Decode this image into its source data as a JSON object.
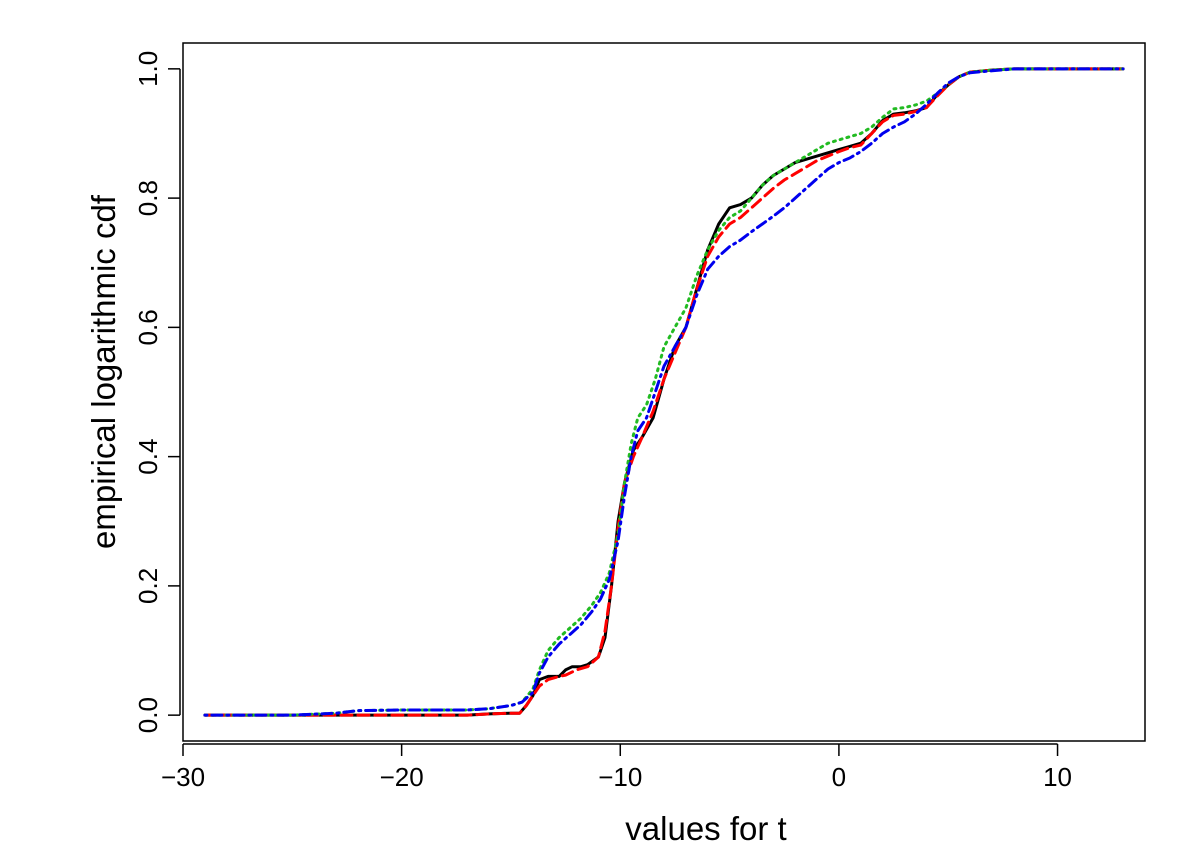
{
  "chart_data": {
    "type": "line",
    "title": "",
    "xlabel": "values for t",
    "ylabel": "empirical logarithmic cdf",
    "xlim": [
      -30,
      14
    ],
    "ylim": [
      -0.04,
      1.04
    ],
    "x_ticks": [
      -30,
      -20,
      -10,
      0,
      10
    ],
    "x_tick_labels": [
      "−30",
      "−20",
      "−10",
      "0",
      "10"
    ],
    "y_ticks": [
      0.0,
      0.2,
      0.4,
      0.6,
      0.8,
      1.0
    ],
    "y_tick_labels": [
      "0.0",
      "0.2",
      "0.4",
      "0.6",
      "0.8",
      "1.0"
    ],
    "grid": false,
    "legend": "none",
    "series": [
      {
        "color": "#000000",
        "dash": "solid",
        "points": [
          [
            -29,
            0
          ],
          [
            -25,
            0
          ],
          [
            -20,
            0
          ],
          [
            -17,
            0
          ],
          [
            -16,
            0.002
          ],
          [
            -15,
            0.003
          ],
          [
            -14.6,
            0.003
          ],
          [
            -14.3,
            0.015
          ],
          [
            -14,
            0.03
          ],
          [
            -13.7,
            0.055
          ],
          [
            -13.3,
            0.06
          ],
          [
            -12.8,
            0.06
          ],
          [
            -12.5,
            0.07
          ],
          [
            -12.2,
            0.075
          ],
          [
            -11.8,
            0.075
          ],
          [
            -11.5,
            0.078
          ],
          [
            -11,
            0.09
          ],
          [
            -10.7,
            0.12
          ],
          [
            -10.4,
            0.2
          ],
          [
            -10.1,
            0.3
          ],
          [
            -9.8,
            0.36
          ],
          [
            -9.4,
            0.41
          ],
          [
            -9,
            0.43
          ],
          [
            -8.5,
            0.46
          ],
          [
            -8,
            0.52
          ],
          [
            -7.5,
            0.57
          ],
          [
            -7,
            0.6
          ],
          [
            -6.5,
            0.66
          ],
          [
            -6,
            0.72
          ],
          [
            -5.5,
            0.76
          ],
          [
            -5,
            0.785
          ],
          [
            -4.5,
            0.79
          ],
          [
            -4,
            0.8
          ],
          [
            -3.5,
            0.82
          ],
          [
            -3,
            0.835
          ],
          [
            -2.5,
            0.845
          ],
          [
            -2,
            0.855
          ],
          [
            -1.5,
            0.86
          ],
          [
            -1,
            0.865
          ],
          [
            0,
            0.875
          ],
          [
            0.5,
            0.88
          ],
          [
            1,
            0.885
          ],
          [
            1.5,
            0.9
          ],
          [
            2,
            0.92
          ],
          [
            2.5,
            0.93
          ],
          [
            3,
            0.932
          ],
          [
            3.5,
            0.935
          ],
          [
            4,
            0.94
          ],
          [
            4.5,
            0.96
          ],
          [
            5,
            0.975
          ],
          [
            5.5,
            0.988
          ],
          [
            6,
            0.995
          ],
          [
            7,
            0.998
          ],
          [
            8,
            1.0
          ],
          [
            9,
            1.0
          ],
          [
            13,
            1.0
          ]
        ]
      },
      {
        "color": "#ff0000",
        "dash": "dashed",
        "points": [
          [
            -29,
            0
          ],
          [
            -25,
            0
          ],
          [
            -20,
            0
          ],
          [
            -17,
            0
          ],
          [
            -16,
            0.002
          ],
          [
            -15,
            0.003
          ],
          [
            -14.6,
            0.003
          ],
          [
            -14.3,
            0.015
          ],
          [
            -14,
            0.03
          ],
          [
            -13.7,
            0.045
          ],
          [
            -13.3,
            0.055
          ],
          [
            -12.8,
            0.06
          ],
          [
            -12.5,
            0.062
          ],
          [
            -12,
            0.07
          ],
          [
            -11.5,
            0.075
          ],
          [
            -11,
            0.09
          ],
          [
            -10.7,
            0.13
          ],
          [
            -10.4,
            0.2
          ],
          [
            -10.1,
            0.29
          ],
          [
            -9.8,
            0.36
          ],
          [
            -9.4,
            0.4
          ],
          [
            -9,
            0.43
          ],
          [
            -8.5,
            0.47
          ],
          [
            -8,
            0.52
          ],
          [
            -7.5,
            0.56
          ],
          [
            -7,
            0.6
          ],
          [
            -6.5,
            0.66
          ],
          [
            -6,
            0.71
          ],
          [
            -5.5,
            0.74
          ],
          [
            -5,
            0.76
          ],
          [
            -4.5,
            0.77
          ],
          [
            -4,
            0.785
          ],
          [
            -3.5,
            0.8
          ],
          [
            -3,
            0.815
          ],
          [
            -2.5,
            0.828
          ],
          [
            -2,
            0.838
          ],
          [
            -1.5,
            0.848
          ],
          [
            -1,
            0.858
          ],
          [
            0,
            0.872
          ],
          [
            0.5,
            0.878
          ],
          [
            1,
            0.882
          ],
          [
            1.5,
            0.9
          ],
          [
            2,
            0.918
          ],
          [
            2.5,
            0.928
          ],
          [
            3,
            0.93
          ],
          [
            3.5,
            0.934
          ],
          [
            4,
            0.94
          ],
          [
            4.5,
            0.958
          ],
          [
            5,
            0.975
          ],
          [
            5.5,
            0.988
          ],
          [
            6,
            0.995
          ],
          [
            7,
            0.998
          ],
          [
            8,
            1.0
          ],
          [
            9,
            1.0
          ],
          [
            13,
            1.0
          ]
        ]
      },
      {
        "color": "#22bb22",
        "dash": "dotted",
        "points": [
          [
            -29,
            0
          ],
          [
            -25,
            0
          ],
          [
            -23,
            0.003
          ],
          [
            -22,
            0.007
          ],
          [
            -20,
            0.008
          ],
          [
            -17,
            0.008
          ],
          [
            -16,
            0.01
          ],
          [
            -15,
            0.015
          ],
          [
            -14.5,
            0.02
          ],
          [
            -14,
            0.04
          ],
          [
            -13.7,
            0.07
          ],
          [
            -13.3,
            0.1
          ],
          [
            -12.8,
            0.12
          ],
          [
            -12.3,
            0.135
          ],
          [
            -11.8,
            0.15
          ],
          [
            -11.3,
            0.17
          ],
          [
            -10.9,
            0.19
          ],
          [
            -10.5,
            0.22
          ],
          [
            -10.1,
            0.28
          ],
          [
            -9.8,
            0.36
          ],
          [
            -9.5,
            0.42
          ],
          [
            -9.2,
            0.46
          ],
          [
            -8.8,
            0.48
          ],
          [
            -8.4,
            0.52
          ],
          [
            -8,
            0.57
          ],
          [
            -7.5,
            0.6
          ],
          [
            -7,
            0.63
          ],
          [
            -6.5,
            0.68
          ],
          [
            -6,
            0.72
          ],
          [
            -5.5,
            0.75
          ],
          [
            -5,
            0.77
          ],
          [
            -4.5,
            0.78
          ],
          [
            -4,
            0.8
          ],
          [
            -3.5,
            0.82
          ],
          [
            -3,
            0.835
          ],
          [
            -2.5,
            0.845
          ],
          [
            -2,
            0.855
          ],
          [
            -1.5,
            0.865
          ],
          [
            -1,
            0.875
          ],
          [
            -0.5,
            0.885
          ],
          [
            0,
            0.89
          ],
          [
            0.5,
            0.895
          ],
          [
            1,
            0.9
          ],
          [
            1.5,
            0.91
          ],
          [
            2,
            0.925
          ],
          [
            2.5,
            0.938
          ],
          [
            3,
            0.94
          ],
          [
            3.5,
            0.944
          ],
          [
            4,
            0.95
          ],
          [
            4.5,
            0.962
          ],
          [
            5,
            0.977
          ],
          [
            5.5,
            0.988
          ],
          [
            6,
            0.995
          ],
          [
            7,
            0.998
          ],
          [
            8,
            1.0
          ],
          [
            9,
            1.0
          ],
          [
            13,
            1.0
          ]
        ]
      },
      {
        "color": "#0000ee",
        "dash": "dotdash",
        "points": [
          [
            -29,
            0
          ],
          [
            -25,
            0
          ],
          [
            -23,
            0.003
          ],
          [
            -22,
            0.007
          ],
          [
            -20,
            0.008
          ],
          [
            -17,
            0.008
          ],
          [
            -16,
            0.01
          ],
          [
            -15,
            0.015
          ],
          [
            -14.5,
            0.02
          ],
          [
            -14,
            0.035
          ],
          [
            -13.7,
            0.065
          ],
          [
            -13.3,
            0.09
          ],
          [
            -12.8,
            0.11
          ],
          [
            -12.3,
            0.125
          ],
          [
            -11.8,
            0.14
          ],
          [
            -11.3,
            0.16
          ],
          [
            -10.9,
            0.18
          ],
          [
            -10.5,
            0.21
          ],
          [
            -10.1,
            0.27
          ],
          [
            -9.8,
            0.34
          ],
          [
            -9.5,
            0.4
          ],
          [
            -9.2,
            0.44
          ],
          [
            -8.8,
            0.46
          ],
          [
            -8.4,
            0.5
          ],
          [
            -8,
            0.54
          ],
          [
            -7.5,
            0.57
          ],
          [
            -7,
            0.6
          ],
          [
            -6.5,
            0.65
          ],
          [
            -6,
            0.69
          ],
          [
            -5.5,
            0.71
          ],
          [
            -5,
            0.725
          ],
          [
            -4.5,
            0.735
          ],
          [
            -4,
            0.748
          ],
          [
            -3.5,
            0.76
          ],
          [
            -3,
            0.772
          ],
          [
            -2.5,
            0.785
          ],
          [
            -2,
            0.8
          ],
          [
            -1.5,
            0.815
          ],
          [
            -1,
            0.83
          ],
          [
            -0.5,
            0.845
          ],
          [
            0,
            0.855
          ],
          [
            0.5,
            0.862
          ],
          [
            1,
            0.872
          ],
          [
            1.5,
            0.885
          ],
          [
            2,
            0.9
          ],
          [
            2.5,
            0.91
          ],
          [
            3,
            0.918
          ],
          [
            3.5,
            0.93
          ],
          [
            4,
            0.945
          ],
          [
            4.5,
            0.962
          ],
          [
            5,
            0.978
          ],
          [
            5.5,
            0.988
          ],
          [
            6,
            0.994
          ],
          [
            7,
            0.997
          ],
          [
            8,
            1.0
          ],
          [
            9,
            1.0
          ],
          [
            13,
            1.0
          ]
        ]
      }
    ]
  }
}
